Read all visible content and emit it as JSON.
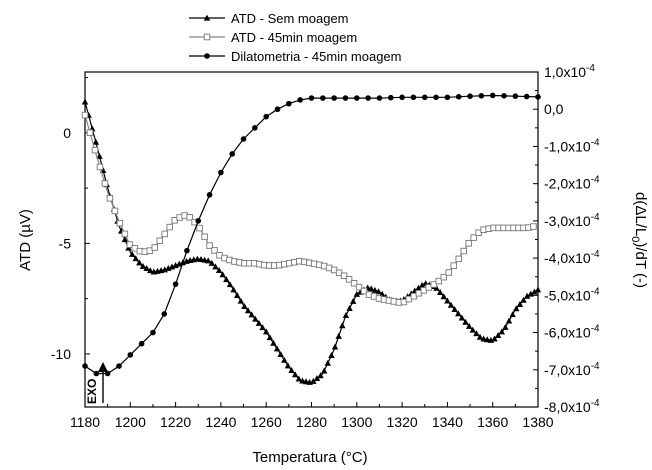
{
  "chart_data": {
    "type": "line",
    "title": "",
    "xlabel": "Temperatura (°C)",
    "ylabel_left": "ATD (µV)",
    "ylabel_right": "d(ΔL/L0)/dT (-)",
    "xlim": [
      1180,
      1380
    ],
    "ylim_left": [
      -12.4,
      2.75
    ],
    "ylim_right": [
      -0.0008,
      0.0001
    ],
    "x_ticks": [
      1180,
      1200,
      1220,
      1240,
      1260,
      1280,
      1300,
      1320,
      1340,
      1360,
      1380
    ],
    "y_left_ticks": [
      0,
      -5,
      -10
    ],
    "y_right_ticks": [
      {
        "value": 0.0001,
        "label": "1,0x10",
        "exp": "-4"
      },
      {
        "value": 0,
        "label": "0,0",
        "exp": ""
      },
      {
        "value": -0.0001,
        "label": "-1,0x10",
        "exp": "-4"
      },
      {
        "value": -0.0002,
        "label": "-2,0x10",
        "exp": "-4"
      },
      {
        "value": -0.0003,
        "label": "-3,0x10",
        "exp": "-4"
      },
      {
        "value": -0.0004,
        "label": "-4,0x10",
        "exp": "-4"
      },
      {
        "value": -0.0005,
        "label": "-5,0x10",
        "exp": "-4"
      },
      {
        "value": -0.0006,
        "label": "-6,0x10",
        "exp": "-4"
      },
      {
        "value": -0.0007,
        "label": "-7,0x10",
        "exp": "-4"
      },
      {
        "value": -0.0008,
        "label": "-8,0x10",
        "exp": "-4"
      }
    ],
    "grid": false,
    "legend_position": "top-center",
    "annotation": "EXO",
    "series": [
      {
        "name": "ATD - Sem moagem",
        "axis": "left",
        "marker": "triangle",
        "x": [
          1180,
          1185,
          1190,
          1195,
          1200,
          1205,
          1210,
          1215,
          1220,
          1225,
          1230,
          1235,
          1240,
          1245,
          1250,
          1255,
          1260,
          1265,
          1270,
          1275,
          1280,
          1285,
          1290,
          1295,
          1300,
          1305,
          1310,
          1315,
          1320,
          1325,
          1330,
          1335,
          1340,
          1345,
          1350,
          1355,
          1360,
          1365,
          1370,
          1375,
          1380
        ],
        "y": [
          1.4,
          -0.5,
          -2.5,
          -4.2,
          -5.4,
          -6.0,
          -6.3,
          -6.2,
          -6.0,
          -5.8,
          -5.7,
          -5.8,
          -6.3,
          -7.0,
          -7.8,
          -8.4,
          -9.0,
          -9.8,
          -10.6,
          -11.2,
          -11.3,
          -10.9,
          -9.8,
          -8.3,
          -7.3,
          -7.0,
          -7.2,
          -7.6,
          -7.6,
          -7.2,
          -6.8,
          -7.0,
          -7.6,
          -8.2,
          -8.8,
          -9.3,
          -9.4,
          -8.9,
          -8.0,
          -7.4,
          -7.1
        ]
      },
      {
        "name": "ATD - 45min moagem",
        "axis": "left",
        "marker": "open-square",
        "x": [
          1180,
          1185,
          1190,
          1195,
          1200,
          1205,
          1210,
          1215,
          1220,
          1225,
          1230,
          1235,
          1240,
          1245,
          1250,
          1255,
          1260,
          1265,
          1270,
          1275,
          1280,
          1285,
          1290,
          1295,
          1300,
          1305,
          1310,
          1315,
          1320,
          1325,
          1330,
          1335,
          1340,
          1345,
          1350,
          1355,
          1360,
          1365,
          1370,
          1375,
          1380
        ],
        "y": [
          0.8,
          -1.0,
          -2.7,
          -4.0,
          -5.1,
          -5.4,
          -5.3,
          -4.6,
          -3.9,
          -3.7,
          -4.2,
          -5.1,
          -5.6,
          -5.8,
          -5.9,
          -5.9,
          -6.0,
          -6.0,
          -5.9,
          -5.8,
          -5.9,
          -6.0,
          -6.2,
          -6.5,
          -6.9,
          -7.3,
          -7.5,
          -7.6,
          -7.7,
          -7.4,
          -7.1,
          -6.8,
          -6.4,
          -5.7,
          -4.9,
          -4.4,
          -4.3,
          -4.3,
          -4.3,
          -4.3,
          -4.2
        ]
      },
      {
        "name": "Dilatometria - 45min moagem",
        "axis": "right",
        "marker": "filled-circle",
        "x": [
          1180,
          1185,
          1190,
          1195,
          1200,
          1205,
          1210,
          1215,
          1220,
          1225,
          1230,
          1235,
          1240,
          1245,
          1250,
          1255,
          1260,
          1265,
          1270,
          1275,
          1280,
          1290,
          1300,
          1310,
          1320,
          1330,
          1340,
          1350,
          1360,
          1370,
          1380
        ],
        "y": [
          -0.00069,
          -0.00071,
          -0.00071,
          -0.00069,
          -0.00066,
          -0.00063,
          -0.0006,
          -0.00055,
          -0.00047,
          -0.00038,
          -0.0003,
          -0.00023,
          -0.00017,
          -0.00012,
          -8e-05,
          -5e-05,
          -2e-05,
          0.0,
          1.5e-05,
          2.5e-05,
          3e-05,
          3e-05,
          3e-05,
          3e-05,
          3.2e-05,
          3.2e-05,
          3.2e-05,
          3.5e-05,
          3.7e-05,
          3.5e-05,
          3.3e-05
        ]
      }
    ]
  }
}
